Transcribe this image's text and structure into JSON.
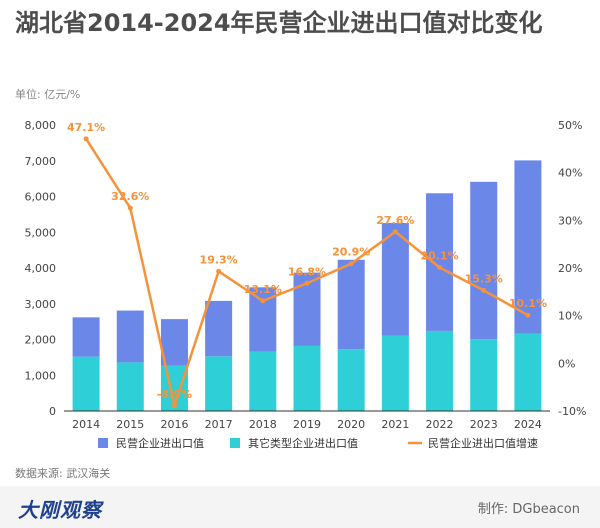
{
  "header": {
    "title": "湖北省2014-2024年民营企业进出口值对比变化",
    "unit": "单位: 亿元/%"
  },
  "footer": {
    "source": "数据来源: 武汉海关",
    "brand": "大刚观察",
    "credit": "制作: DGbeacon"
  },
  "colors": {
    "private": "#6b87e8",
    "other": "#2ecfd6",
    "growth": "#f7923a"
  },
  "chart_data": {
    "type": "bar",
    "stacked": true,
    "categories": [
      "2014",
      "2015",
      "2016",
      "2017",
      "2018",
      "2019",
      "2020",
      "2021",
      "2022",
      "2023",
      "2024"
    ],
    "series": [
      {
        "name": "民营企业进出口值",
        "type": "bar",
        "axis": "left",
        "values": [
          1100,
          1450,
          1300,
          1550,
          1800,
          2050,
          2500,
          3150,
          3850,
          4400,
          4850
        ]
      },
      {
        "name": "其它类型企业进出口值",
        "type": "bar",
        "axis": "left",
        "values": [
          1520,
          1360,
          1270,
          1530,
          1660,
          1820,
          1730,
          2110,
          2240,
          2010,
          2160
        ]
      },
      {
        "name": "民营企业进出口值增速",
        "type": "line",
        "axis": "right",
        "values": [
          47.1,
          32.6,
          -8.9,
          19.3,
          13.1,
          16.8,
          20.9,
          27.6,
          20.1,
          15.3,
          10.1
        ],
        "labels": [
          "47.1%",
          "32.6%",
          "-8.9%",
          "19.3%",
          "13.1%",
          "16.8%",
          "20.9%",
          "27.6%",
          "20.1%",
          "15.3%",
          "10.1%"
        ]
      }
    ],
    "y_left": {
      "range": [
        0,
        8000
      ],
      "ticks": [
        "0",
        "1,000",
        "2,000",
        "3,000",
        "4,000",
        "5,000",
        "6,000",
        "7,000",
        "8,000"
      ]
    },
    "y_right": {
      "range": [
        -10,
        50
      ],
      "ticks": [
        "-10%",
        "0%",
        "10%",
        "20%",
        "30%",
        "40%",
        "50%"
      ]
    },
    "grid": false,
    "legend_position": "bottom-left"
  }
}
